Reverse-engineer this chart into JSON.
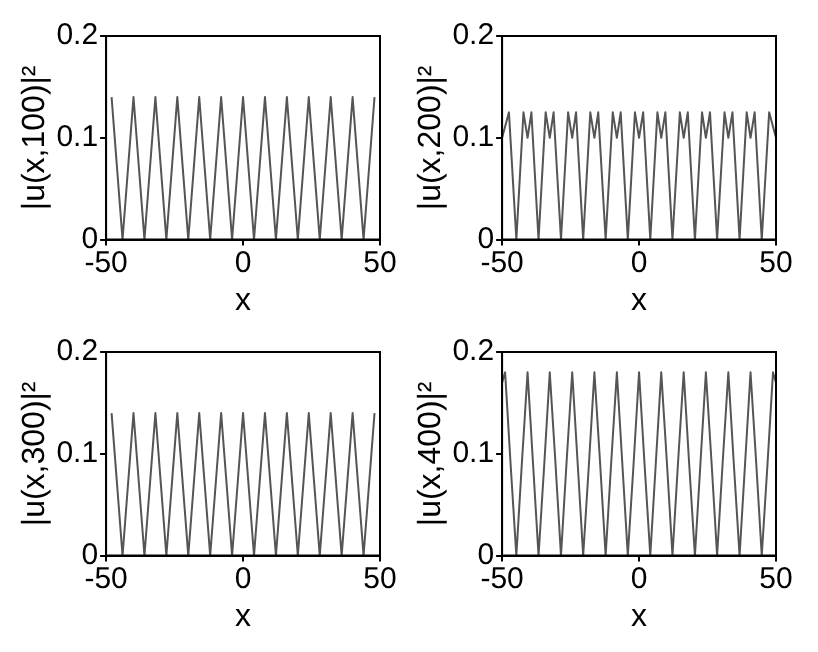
{
  "chart_data": [
    {
      "type": "line",
      "xlabel": "x",
      "ylabel": "|u(x,100)|²",
      "color": "#555555",
      "xlim": [
        -50,
        50
      ],
      "ylim": [
        0,
        0.2
      ],
      "xticks": [
        -50,
        0,
        50
      ],
      "yticks": [
        0,
        0.1,
        0.2
      ],
      "x": [
        -48,
        -46,
        -44,
        -42,
        -40,
        -38,
        -36,
        -34,
        -32,
        -30,
        -28,
        -26,
        -24,
        -22,
        -20,
        -18,
        -16,
        -14,
        -12,
        -10,
        -8,
        -6,
        -4,
        -2,
        0,
        2,
        4,
        6,
        8,
        10,
        12,
        14,
        16,
        18,
        20,
        22,
        24,
        26,
        28,
        30,
        32,
        34,
        36,
        38,
        40,
        42,
        44,
        46,
        48
      ],
      "values": [
        0.14,
        0.07,
        0,
        0.07,
        0.14,
        0.07,
        0,
        0.07,
        0.14,
        0.07,
        0,
        0.07,
        0.14,
        0.07,
        0,
        0.07,
        0.14,
        0.07,
        0,
        0.07,
        0.14,
        0.07,
        0,
        0.07,
        0.14,
        0.07,
        0,
        0.07,
        0.14,
        0.07,
        0,
        0.07,
        0.14,
        0.07,
        0,
        0.07,
        0.14,
        0.07,
        0,
        0.07,
        0.14,
        0.07,
        0,
        0.07,
        0.14,
        0.07,
        0,
        0.07,
        0.14
      ]
    },
    {
      "type": "line",
      "xlabel": "x",
      "ylabel": "|u(x,200)|²",
      "color": "#555555",
      "xlim": [
        -50,
        50
      ],
      "ylim": [
        0,
        0.2
      ],
      "xticks": [
        -50,
        0,
        50
      ],
      "yticks": [
        0,
        0.1,
        0.2
      ],
      "x": [
        -50,
        -47.5,
        -44.8,
        -42.2,
        -40.7,
        -39.3,
        -36.7,
        -34.1,
        -32.6,
        -31.2,
        -28.5,
        -25.9,
        -24.4,
        -23,
        -20.4,
        -17.8,
        -16.3,
        -14.9,
        -12.2,
        -9.6,
        -8.1,
        -6.7,
        -4.1,
        -1.5,
        0,
        1.5,
        4.1,
        6.7,
        8.1,
        9.6,
        12.2,
        14.9,
        16.3,
        17.8,
        20.4,
        23,
        24.4,
        25.9,
        28.5,
        31.2,
        32.6,
        34.1,
        36.7,
        39.3,
        40.7,
        42.2,
        44.8,
        47.5,
        50
      ],
      "values": [
        0.1,
        0.125,
        0,
        0.125,
        0.1,
        0.125,
        0,
        0.125,
        0.1,
        0.125,
        0,
        0.125,
        0.1,
        0.125,
        0,
        0.125,
        0.1,
        0.125,
        0,
        0.125,
        0.1,
        0.125,
        0,
        0.125,
        0.1,
        0.125,
        0,
        0.125,
        0.1,
        0.125,
        0,
        0.125,
        0.1,
        0.125,
        0,
        0.125,
        0.1,
        0.125,
        0,
        0.125,
        0.1,
        0.125,
        0,
        0.125,
        0.1,
        0.125,
        0,
        0.125,
        0.1
      ]
    },
    {
      "type": "line",
      "xlabel": "x",
      "ylabel": "|u(x,300)|²",
      "color": "#555555",
      "xlim": [
        -50,
        50
      ],
      "ylim": [
        0,
        0.2
      ],
      "xticks": [
        -50,
        0,
        50
      ],
      "yticks": [
        0,
        0.1,
        0.2
      ],
      "x": [
        -48,
        -46,
        -44,
        -42,
        -40,
        -38,
        -36,
        -34,
        -32,
        -30,
        -28,
        -26,
        -24,
        -22,
        -20,
        -18,
        -16,
        -14,
        -12,
        -10,
        -8,
        -6,
        -4,
        -2,
        0,
        2,
        4,
        6,
        8,
        10,
        12,
        14,
        16,
        18,
        20,
        22,
        24,
        26,
        28,
        30,
        32,
        34,
        36,
        38,
        40,
        42,
        44,
        46,
        48
      ],
      "values": [
        0.14,
        0.07,
        0,
        0.07,
        0.14,
        0.07,
        0,
        0.07,
        0.14,
        0.07,
        0,
        0.07,
        0.14,
        0.07,
        0,
        0.07,
        0.14,
        0.07,
        0,
        0.07,
        0.14,
        0.07,
        0,
        0.07,
        0.14,
        0.07,
        0,
        0.07,
        0.14,
        0.07,
        0,
        0.07,
        0.14,
        0.07,
        0,
        0.07,
        0.14,
        0.07,
        0,
        0.07,
        0.14,
        0.07,
        0,
        0.07,
        0.14,
        0.07,
        0,
        0.07,
        0.14
      ]
    },
    {
      "type": "line",
      "xlabel": "x",
      "ylabel": "|u(x,400)|²",
      "color": "#555555",
      "xlim": [
        -50,
        50
      ],
      "ylim": [
        0,
        0.2
      ],
      "xticks": [
        -50,
        0,
        50
      ],
      "yticks": [
        0,
        0.1,
        0.2
      ],
      "x": [
        -50,
        -48.9,
        -46.9,
        -44.8,
        -42.8,
        -40.7,
        -38.7,
        -36.7,
        -34.6,
        -32.6,
        -30.5,
        -28.5,
        -26.5,
        -24.4,
        -22.4,
        -20.4,
        -18.3,
        -16.3,
        -14.2,
        -12.2,
        -10.2,
        -8.1,
        -6.1,
        -4.1,
        -2,
        0,
        2,
        4.1,
        6.1,
        8.1,
        10.2,
        12.2,
        14.2,
        16.3,
        18.3,
        20.4,
        22.4,
        24.4,
        26.5,
        28.5,
        30.5,
        32.6,
        34.6,
        36.7,
        38.7,
        40.7,
        42.8,
        44.8,
        46.9,
        48.9,
        50
      ],
      "values": [
        0.17,
        0.18,
        0.09,
        0,
        0.09,
        0.18,
        0.09,
        0,
        0.09,
        0.18,
        0.09,
        0,
        0.09,
        0.18,
        0.09,
        0,
        0.09,
        0.18,
        0.09,
        0,
        0.09,
        0.18,
        0.09,
        0,
        0.09,
        0.18,
        0.09,
        0,
        0.09,
        0.18,
        0.09,
        0,
        0.09,
        0.18,
        0.09,
        0,
        0.09,
        0.18,
        0.09,
        0,
        0.09,
        0.18,
        0.09,
        0,
        0.09,
        0.18,
        0.09,
        0,
        0.09,
        0.18,
        0.17
      ]
    }
  ]
}
